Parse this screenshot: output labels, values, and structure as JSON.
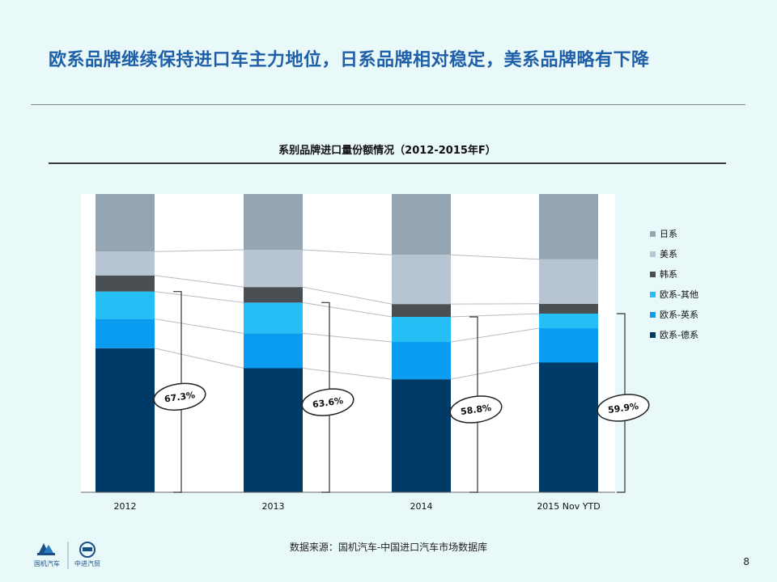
{
  "slide": {
    "title": "欧系品牌继续保持进口车主力地位，日系品牌相对稳定，美系品牌略有下降",
    "source": "数据来源：国机汽车-中国进口汽车市场数据库",
    "page_number": "8"
  },
  "logos": {
    "left_text": "国机汽车",
    "right_text": "中进汽贸",
    "color": "#1a4f86"
  },
  "chart_data": {
    "type": "bar",
    "stacked": true,
    "normalized_percent": true,
    "title": "系别品牌进口量份额情况（2012-2015年F）",
    "categories": [
      "2012",
      "2013",
      "2014",
      "2015 Nov YTD"
    ],
    "series": [
      {
        "name": "欧系-德系",
        "color": "#003a66",
        "values": [
          48.3,
          41.6,
          37.9,
          43.5
        ]
      },
      {
        "name": "欧系-英系",
        "color": "#0a9cf0",
        "values": [
          9.8,
          11.7,
          12.5,
          11.5
        ]
      },
      {
        "name": "欧系-其他",
        "color": "#25bff5",
        "values": [
          9.2,
          10.3,
          8.4,
          4.9
        ]
      },
      {
        "name": "韩系",
        "color": "#4a4f54",
        "values": [
          5.4,
          5.2,
          4.3,
          3.3
        ]
      },
      {
        "name": "美系",
        "color": "#b7c4d1",
        "values": [
          8.0,
          12.5,
          16.5,
          14.9
        ]
      },
      {
        "name": "日系",
        "color": "#95a5b1",
        "values": [
          19.3,
          18.7,
          20.4,
          21.9
        ]
      }
    ],
    "bracket_annotations": [
      "67.3%",
      "63.6%",
      "58.8%",
      "59.9%"
    ],
    "ylim": [
      0,
      100
    ],
    "grid": false,
    "legend_position": "right",
    "connector_lines": true
  }
}
